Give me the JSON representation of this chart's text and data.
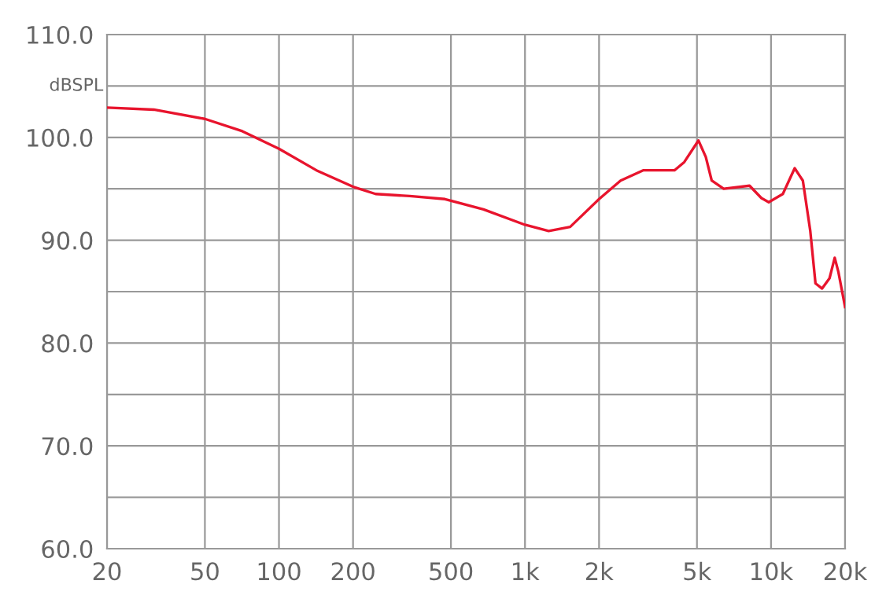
{
  "chart_data": {
    "type": "line",
    "ylabel": "dBSPL",
    "log": "x",
    "xlim": [
      20,
      20000
    ],
    "xticks": [
      20,
      50,
      100,
      200,
      500,
      {
        "value": 1000,
        "label": "1k"
      },
      {
        "value": 2000,
        "label": "2k"
      },
      {
        "value": 5000,
        "label": "5k"
      },
      {
        "value": 10000,
        "label": "10k"
      },
      {
        "value": 20000,
        "label": "20k"
      }
    ],
    "ylim": [
      60,
      110
    ],
    "yticks": [
      {
        "value": 60,
        "label": "60.0"
      },
      {
        "value": 65,
        "label": null
      },
      {
        "value": 70,
        "label": "70.0"
      },
      {
        "value": 75,
        "label": null
      },
      {
        "value": 80,
        "label": "80.0"
      },
      {
        "value": 85,
        "label": null
      },
      {
        "value": 90,
        "label": "90.0"
      },
      {
        "value": 95,
        "label": null
      },
      {
        "value": 100,
        "label": "100.0"
      },
      {
        "value": 105,
        "label": null
      },
      {
        "value": 110,
        "label": "110.0"
      }
    ],
    "grid": true,
    "series": [
      {
        "color": "#e8142d",
        "x": [
          20,
          31,
          50,
          71,
          100,
          142,
          200,
          247,
          340,
          473,
          678,
          1000,
          1248,
          1526,
          2000,
          2447,
          3020,
          4050,
          4440,
          5070,
          5430,
          5740,
          6420,
          8180,
          9140,
          9790,
          11170,
          12480,
          13470,
          14440,
          15160,
          16130,
          17290,
          18150,
          18790,
          20000
        ],
        "values": [
          102.9,
          102.7,
          101.8,
          100.6,
          98.9,
          96.8,
          95.2,
          94.5,
          94.3,
          94.0,
          93.0,
          91.5,
          90.9,
          91.3,
          94.0,
          95.8,
          96.8,
          96.8,
          97.6,
          99.7,
          98.1,
          95.8,
          95.0,
          95.3,
          94.1,
          93.7,
          94.5,
          97.0,
          95.8,
          90.9,
          85.8,
          85.3,
          86.3,
          88.3,
          86.9,
          83.5
        ]
      }
    ]
  }
}
